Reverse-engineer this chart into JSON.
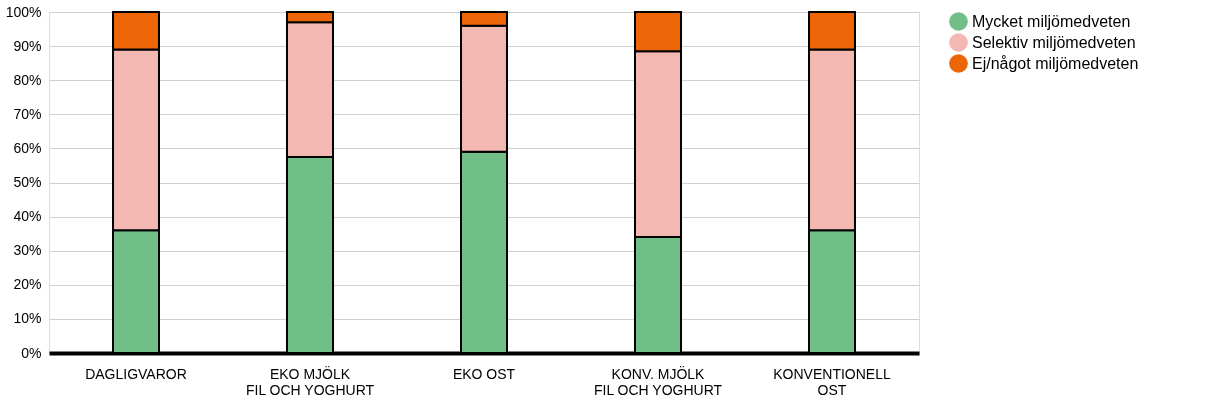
{
  "chart_data": {
    "type": "bar",
    "stacked": true,
    "categories": [
      "DAGLIGVAROR",
      "EKO  MJÖLK\nFIL OCH YOGHURT",
      "EKO OST",
      "KONV.  MJÖLK\nFIL OCH YOGHURT",
      "KONVENTIONELL\nOST"
    ],
    "series": [
      {
        "name": "Mycket miljömedveten",
        "color": "#6fbf87",
        "values": [
          36,
          57.5,
          59,
          34,
          36
        ]
      },
      {
        "name": "Selektiv miljömedveten",
        "color": "#f4b8b3",
        "values": [
          53,
          39.5,
          37,
          54.5,
          53
        ]
      },
      {
        "name": "Ej/något miljömedveten",
        "color": "#ec6608",
        "values": [
          11,
          3,
          4,
          11.5,
          11
        ]
      }
    ],
    "ylim": [
      0,
      100
    ],
    "yticks": [
      {
        "value": 0,
        "label": "0%"
      },
      {
        "value": 10,
        "label": "10%"
      },
      {
        "value": 20,
        "label": "20%"
      },
      {
        "value": 30,
        "label": "30%"
      },
      {
        "value": 40,
        "label": "40%"
      },
      {
        "value": 50,
        "label": "50%"
      },
      {
        "value": 60,
        "label": "60%"
      },
      {
        "value": 70,
        "label": "70%"
      },
      {
        "value": 80,
        "label": "80%"
      },
      {
        "value": 90,
        "label": "90%"
      },
      {
        "value": 100,
        "label": "100%"
      }
    ],
    "grid": "y",
    "legend": "right"
  }
}
